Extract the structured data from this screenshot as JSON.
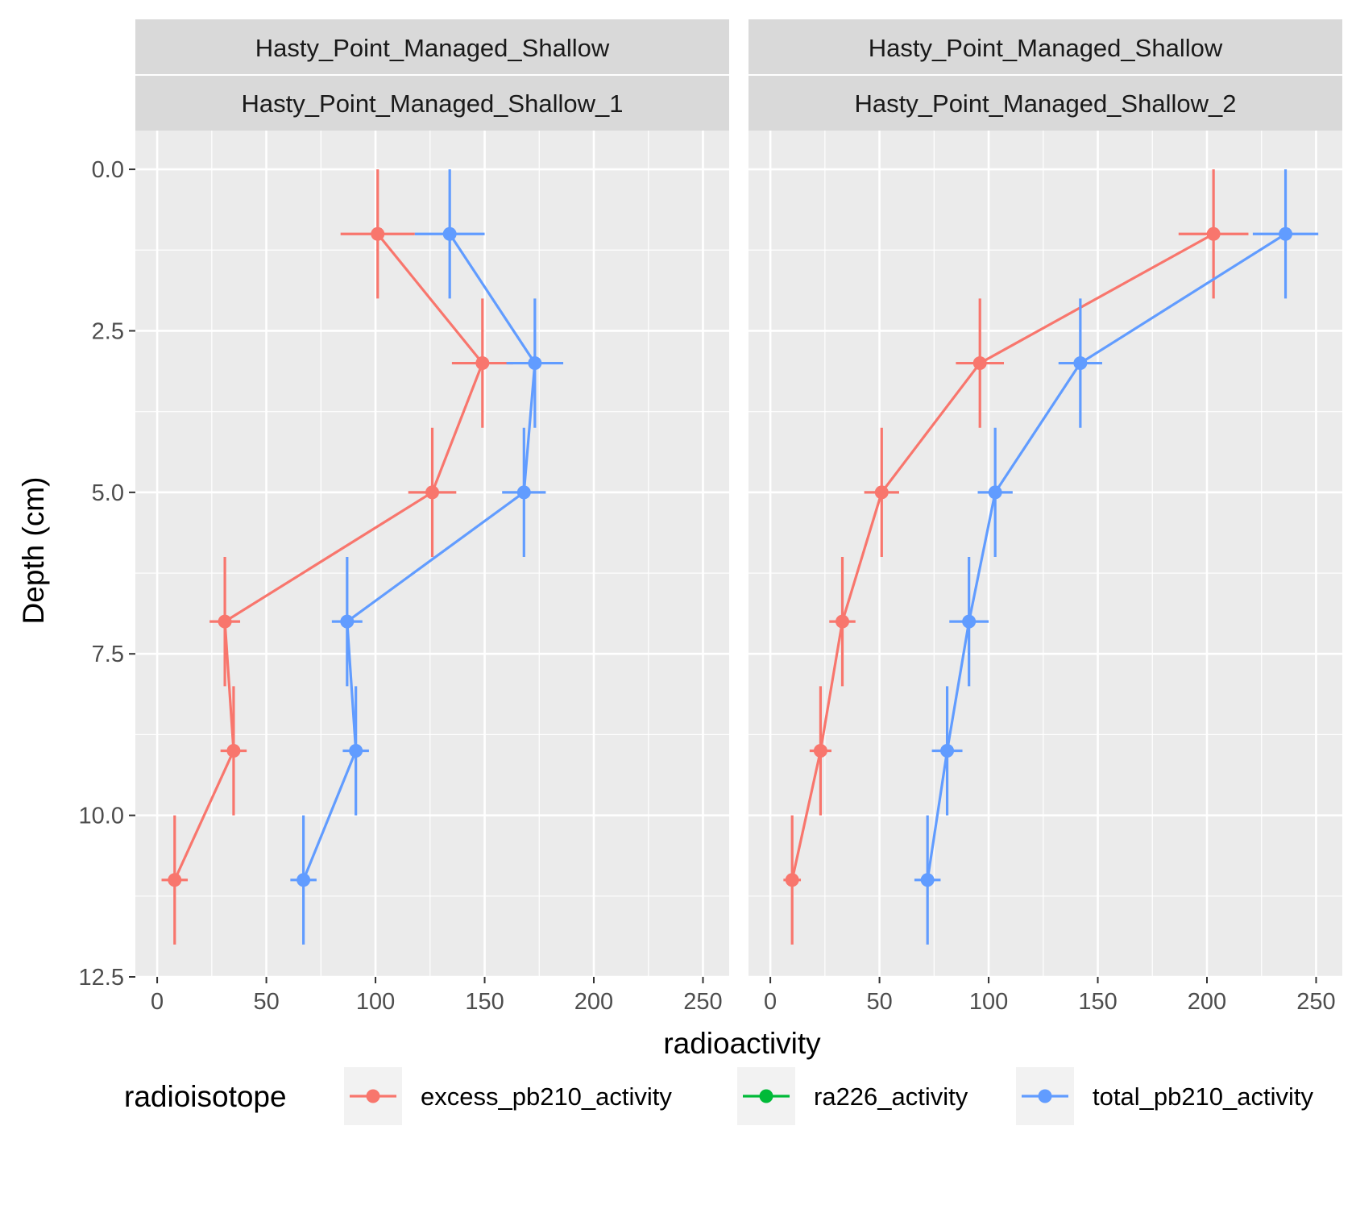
{
  "chart_data": {
    "type": "line",
    "xlabel": "radioactivity",
    "ylabel": "Depth (cm)",
    "xlim": [
      -10,
      262
    ],
    "ylim": [
      12.5,
      -0.6
    ],
    "y_reversed": true,
    "x_ticks": [
      "0",
      "50",
      "100",
      "150",
      "200",
      "250"
    ],
    "x_tick_values": [
      0,
      50,
      100,
      150,
      200,
      250
    ],
    "y_ticks": [
      "0.0",
      "2.5",
      "5.0",
      "7.5",
      "10.0",
      "12.5"
    ],
    "y_tick_values": [
      0,
      2.5,
      5,
      7.5,
      10,
      12.5
    ],
    "grid": true,
    "legend": {
      "title": "radioisotope",
      "position": "bottom",
      "entries": [
        {
          "name": "excess_pb210_activity",
          "color": "#F8766D"
        },
        {
          "name": "ra226_activity",
          "color": "#00BA38"
        },
        {
          "name": "total_pb210_activity",
          "color": "#619CFF"
        }
      ]
    },
    "panels": [
      {
        "strip_top": "Hasty_Point_Managed_Shallow",
        "strip_bottom": "Hasty_Point_Managed_Shallow_1",
        "series": [
          {
            "name": "excess_pb210_activity",
            "color": "#F8766D",
            "points": [
              {
                "x": 101,
                "y": 1,
                "xerr": 17,
                "yerr": 1
              },
              {
                "x": 149,
                "y": 3,
                "xerr": 14,
                "yerr": 1
              },
              {
                "x": 126,
                "y": 5,
                "xerr": 11,
                "yerr": 1
              },
              {
                "x": 31,
                "y": 7,
                "xerr": 7,
                "yerr": 1
              },
              {
                "x": 35,
                "y": 9,
                "xerr": 6,
                "yerr": 1
              },
              {
                "x": 8,
                "y": 11,
                "xerr": 6,
                "yerr": 1
              }
            ]
          },
          {
            "name": "total_pb210_activity",
            "color": "#619CFF",
            "points": [
              {
                "x": 134,
                "y": 1,
                "xerr": 16,
                "yerr": 1
              },
              {
                "x": 173,
                "y": 3,
                "xerr": 13,
                "yerr": 1
              },
              {
                "x": 168,
                "y": 5,
                "xerr": 10,
                "yerr": 1
              },
              {
                "x": 87,
                "y": 7,
                "xerr": 7,
                "yerr": 1
              },
              {
                "x": 91,
                "y": 9,
                "xerr": 6,
                "yerr": 1
              },
              {
                "x": 67,
                "y": 11,
                "xerr": 6,
                "yerr": 1
              }
            ]
          },
          {
            "name": "ra226_activity",
            "color": "#00BA38",
            "points": []
          }
        ]
      },
      {
        "strip_top": "Hasty_Point_Managed_Shallow",
        "strip_bottom": "Hasty_Point_Managed_Shallow_2",
        "series": [
          {
            "name": "excess_pb210_activity",
            "color": "#F8766D",
            "points": [
              {
                "x": 203,
                "y": 1,
                "xerr": 16,
                "yerr": 1
              },
              {
                "x": 96,
                "y": 3,
                "xerr": 11,
                "yerr": 1
              },
              {
                "x": 51,
                "y": 5,
                "xerr": 8,
                "yerr": 1
              },
              {
                "x": 33,
                "y": 7,
                "xerr": 6,
                "yerr": 1
              },
              {
                "x": 23,
                "y": 9,
                "xerr": 5,
                "yerr": 1
              },
              {
                "x": 10,
                "y": 11,
                "xerr": 4,
                "yerr": 1
              }
            ]
          },
          {
            "name": "total_pb210_activity",
            "color": "#619CFF",
            "points": [
              {
                "x": 236,
                "y": 1,
                "xerr": 15,
                "yerr": 1
              },
              {
                "x": 142,
                "y": 3,
                "xerr": 10,
                "yerr": 1
              },
              {
                "x": 103,
                "y": 5,
                "xerr": 8,
                "yerr": 1
              },
              {
                "x": 91,
                "y": 7,
                "xerr": 9,
                "yerr": 1
              },
              {
                "x": 81,
                "y": 9,
                "xerr": 7,
                "yerr": 1
              },
              {
                "x": 72,
                "y": 11,
                "xerr": 6,
                "yerr": 1
              }
            ]
          },
          {
            "name": "ra226_activity",
            "color": "#00BA38",
            "points": []
          }
        ]
      }
    ]
  }
}
